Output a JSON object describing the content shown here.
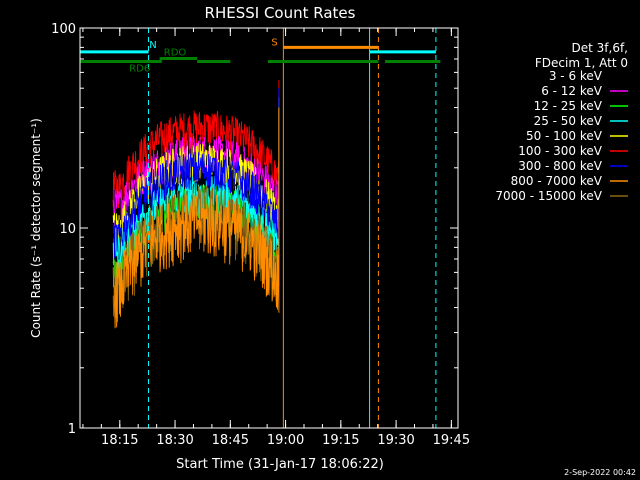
{
  "chart_data": {
    "type": "line",
    "title": "RHESSI Count Rates",
    "xlabel": "Start Time (31-Jan-17 18:06:22)",
    "ylabel": "Count Rate (s⁻¹ detector segment⁻¹)",
    "x_unit": "minutes after 18:06:22",
    "xlim": [
      18.07,
      19.78
    ],
    "ylim": [
      1,
      100
    ],
    "y_scale": "log",
    "x_ticks": [
      "18:15",
      "18:30",
      "18:45",
      "19:00",
      "19:15",
      "19:30",
      "19:45"
    ],
    "x_tick_hours": [
      18.25,
      18.5,
      18.75,
      19.0,
      19.25,
      19.5,
      19.75
    ],
    "y_ticks": [
      "1",
      "10",
      "100"
    ],
    "y_tick_values": [
      1,
      10,
      100
    ],
    "grid": false,
    "legend_header": [
      "Det 3f,6f,",
      "FDecim 1, Att 0"
    ],
    "legend_placement": "right",
    "series": [
      {
        "name": "3 - 6 keV",
        "color": "#000000",
        "start": 18.22,
        "end": 18.97,
        "peak": 38,
        "edge": 22,
        "jump": 60
      },
      {
        "name": "6 - 12 keV",
        "color": "#ff00ff",
        "start": 18.22,
        "end": 18.97,
        "peak": 24,
        "edge": 13,
        "jump": 50
      },
      {
        "name": "12 - 25 keV",
        "color": "#00ff00",
        "start": 18.22,
        "end": 18.97,
        "peak": 14,
        "edge": 6,
        "jump": 45
      },
      {
        "name": "25 - 50 keV",
        "color": "#00ffff",
        "start": 18.22,
        "end": 18.97,
        "peak": 15,
        "edge": 8,
        "jump": 45
      },
      {
        "name": "50 - 100 keV",
        "color": "#ffff00",
        "start": 18.22,
        "end": 18.97,
        "peak": 22,
        "edge": 10,
        "jump": 45
      },
      {
        "name": "100 - 300 keV",
        "color": "#ff0000",
        "start": 18.22,
        "end": 18.97,
        "peak": 32,
        "edge": 16,
        "jump": 55
      },
      {
        "name": "300 - 800 keV",
        "color": "#0000ff",
        "start": 18.22,
        "end": 18.97,
        "peak": 20,
        "edge": 9,
        "jump": 50
      },
      {
        "name": "800 - 7000 keV",
        "color": "#ff8c00",
        "start": 18.22,
        "end": 18.97,
        "peak": 11,
        "edge": 5,
        "jump": 40
      },
      {
        "name": "7000 - 15000 keV",
        "color": "#8b6914",
        "start": 18.22,
        "end": 18.97,
        "peak": 12,
        "edge": 5,
        "jump": 40
      }
    ],
    "annotations": {
      "night": {
        "label": "N",
        "color": "#00ffff",
        "segments": [
          [
            18.07,
            18.38
          ],
          [
            19.38,
            19.68
          ]
        ],
        "level": 76
      },
      "saa": {
        "label": "S",
        "color": "#ff8c00",
        "segments": [
          [
            18.99,
            19.42
          ]
        ],
        "level": 80
      },
      "rd6": {
        "label": "RD6",
        "color": "#008000",
        "segments": [
          [
            18.07,
            18.44
          ],
          [
            18.6,
            18.75
          ],
          [
            18.92,
            19.42
          ],
          [
            19.45,
            19.7
          ]
        ],
        "level": 68
      },
      "rdo": {
        "label": "RDO",
        "color": "#008000",
        "segments": [
          [
            18.07,
            18.43
          ]
        ],
        "level": 62
      },
      "vlines": [
        {
          "x": 18.07,
          "color": "#00ffff",
          "dash": false
        },
        {
          "x": 18.38,
          "color": "#00ffff",
          "dash": true
        },
        {
          "x": 18.99,
          "color": "#ff8c00",
          "dash": false
        },
        {
          "x": 19.38,
          "color": "#00ffff",
          "dash": false
        },
        {
          "x": 19.42,
          "color": "#ff8c00",
          "dash": true
        },
        {
          "x": 19.68,
          "color": "#00ffff",
          "dash": true
        }
      ]
    },
    "footer_date": "2-Sep-2022 00:42"
  }
}
